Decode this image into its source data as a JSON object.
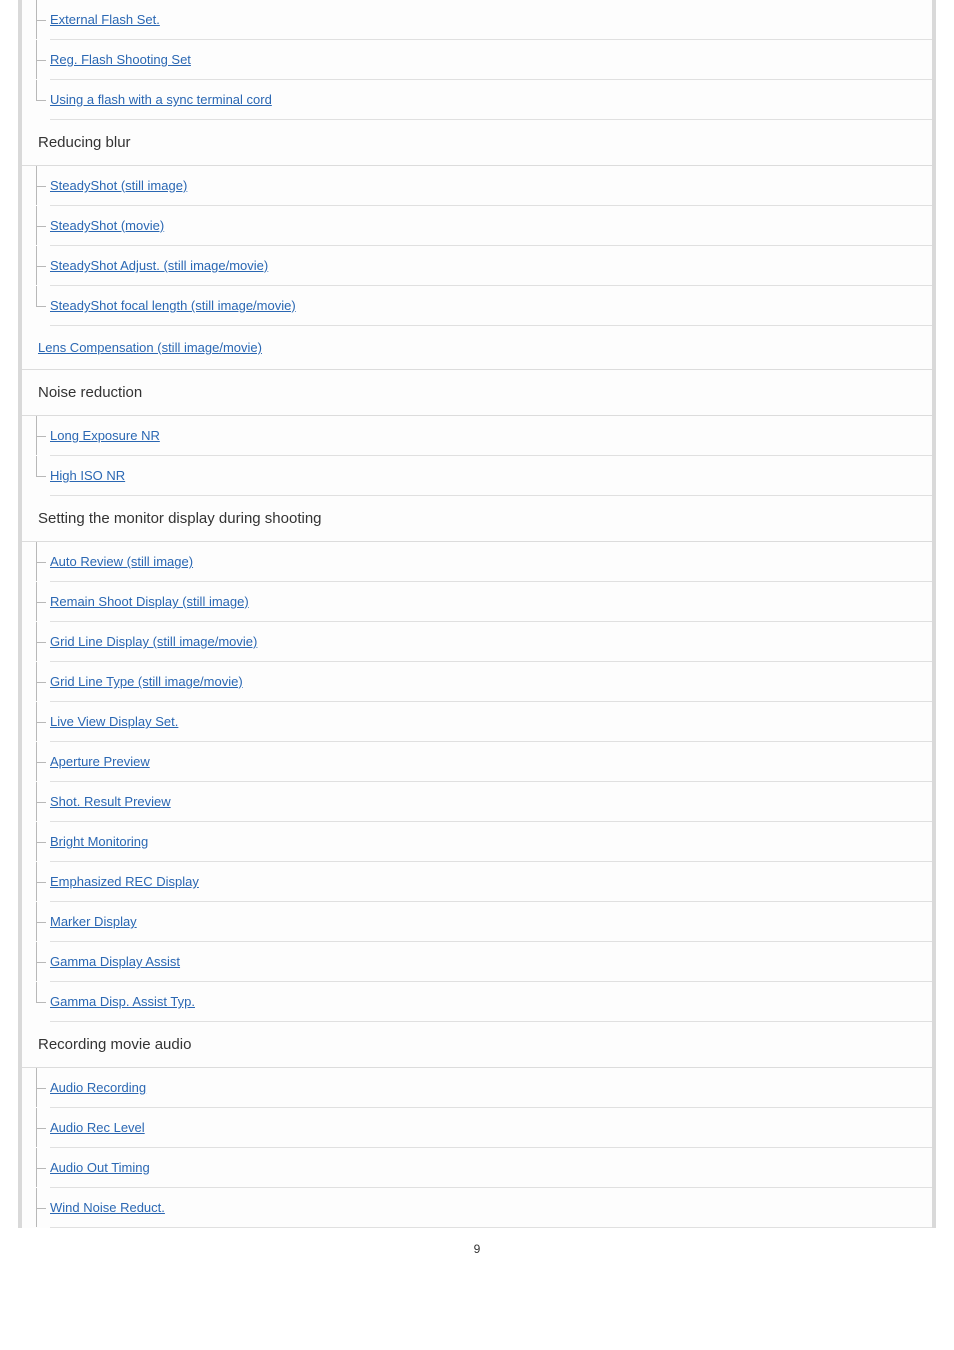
{
  "colors": {
    "link": "#2a67b3",
    "border_outer": "#d9d9d9",
    "border_row": "#e0e0e0",
    "text": "#333333",
    "background": "#fdfdfd"
  },
  "typography": {
    "body_font": "Arial, Helvetica, sans-serif",
    "link_fontsize": 13,
    "heading_fontsize": 15
  },
  "page_number": "9",
  "leading_items": [
    {
      "label": "External Flash Set."
    },
    {
      "label": "Reg. Flash Shooting Set"
    },
    {
      "label": "Using a flash with a sync terminal cord",
      "last": true
    }
  ],
  "sections": [
    {
      "heading": "Reducing blur",
      "items": [
        {
          "label": "SteadyShot (still image)"
        },
        {
          "label": "SteadyShot (movie)"
        },
        {
          "label": "SteadyShot Adjust. (still image/movie)"
        },
        {
          "label": "SteadyShot focal length (still image/movie)",
          "last": true
        }
      ]
    }
  ],
  "toplevel_link": {
    "label": "Lens Compensation (still image/movie)"
  },
  "sections_after": [
    {
      "heading": "Noise reduction",
      "items": [
        {
          "label": "Long Exposure NR"
        },
        {
          "label": "High ISO NR",
          "last": true
        }
      ]
    },
    {
      "heading": "Setting the monitor display during shooting",
      "items": [
        {
          "label": "Auto Review (still image)"
        },
        {
          "label": "Remain Shoot Display (still image)"
        },
        {
          "label": "Grid Line Display (still image/movie)"
        },
        {
          "label": "Grid Line Type (still image/movie)"
        },
        {
          "label": "Live View Display Set."
        },
        {
          "label": "Aperture Preview"
        },
        {
          "label": "Shot. Result Preview"
        },
        {
          "label": "Bright Monitoring"
        },
        {
          "label": "Emphasized REC Display"
        },
        {
          "label": "Marker Display"
        },
        {
          "label": "Gamma Display Assist"
        },
        {
          "label": "Gamma Disp. Assist Typ.",
          "last": true
        }
      ]
    },
    {
      "heading": "Recording movie audio",
      "items": [
        {
          "label": "Audio Recording"
        },
        {
          "label": "Audio Rec Level"
        },
        {
          "label": "Audio Out Timing"
        },
        {
          "label": "Wind Noise Reduct."
        }
      ]
    }
  ]
}
